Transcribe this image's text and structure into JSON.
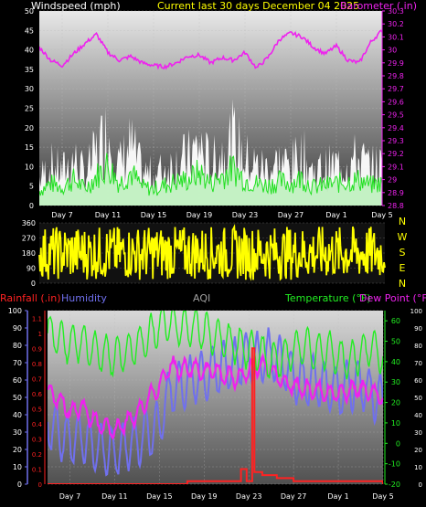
{
  "colors": {
    "windspeed": "#ffffff",
    "wind_gust_green": "#22e022",
    "barometer": "#ee22ee",
    "header_current": "#ffff00",
    "wind_direction": "#ffff00",
    "rainfall": "#ff2222",
    "humidity": "#7070ee",
    "aqi": "#a0a0a0",
    "temperature": "#22ee22",
    "dew_point": "#ee22ee"
  },
  "chart_data": [
    {
      "type": "area",
      "id": "wind_baro",
      "labels": {
        "left": "Windspeed (mph)",
        "center": "Current last 30 days December 04 2025",
        "right": "Barometer (.in)"
      },
      "y_left_ticks": [
        "0",
        "5",
        "10",
        "15",
        "20",
        "25",
        "30",
        "35",
        "40",
        "45",
        "50"
      ],
      "y_left_range": [
        0,
        50
      ],
      "y_right_ticks": [
        "28.8",
        "28.9",
        "29",
        "29.1",
        "29.2",
        "29.3",
        "29.4",
        "29.5",
        "29.6",
        "29.7",
        "29.8",
        "29.9",
        "30",
        "30.1",
        "30.2",
        "30.3"
      ],
      "y_right_range": [
        28.8,
        30.3
      ],
      "x_ticks": [
        "Day 7",
        "Day 11",
        "Day 15",
        "Day 19",
        "Day 23",
        "Day 27",
        "Day 1",
        "Day 5"
      ],
      "x_range": [
        5,
        35
      ],
      "series": [
        {
          "name": "Windspeed (mph)",
          "axis": "left",
          "x": [
            5,
            6,
            7,
            8,
            9,
            10,
            11,
            12,
            13,
            14,
            15,
            16,
            17,
            18,
            19,
            20,
            21,
            22,
            23,
            24,
            25,
            26,
            27,
            28,
            29,
            30,
            31,
            32,
            33,
            34,
            35
          ],
          "values": [
            8,
            12,
            10,
            14,
            9,
            16,
            22,
            12,
            18,
            10,
            9,
            11,
            13,
            14,
            18,
            12,
            16,
            20,
            14,
            12,
            11,
            13,
            12,
            15,
            10,
            11,
            12,
            13,
            14,
            11,
            12
          ]
        },
        {
          "name": "Barometer (.in)",
          "axis": "right",
          "x": [
            5,
            6,
            7,
            8,
            9,
            10,
            11,
            12,
            13,
            14,
            15,
            16,
            17,
            18,
            19,
            20,
            21,
            22,
            23,
            24,
            25,
            26,
            27,
            28,
            29,
            30,
            31,
            32,
            33,
            34,
            35
          ],
          "values": [
            30.02,
            29.92,
            29.88,
            29.97,
            30.05,
            30.12,
            29.98,
            29.92,
            29.95,
            29.9,
            29.88,
            29.87,
            29.9,
            29.95,
            29.96,
            29.9,
            29.94,
            29.92,
            29.98,
            29.86,
            29.94,
            30.08,
            30.13,
            30.1,
            30.02,
            29.97,
            30.03,
            29.92,
            29.9,
            30.06,
            30.15
          ]
        }
      ]
    },
    {
      "type": "line",
      "id": "wind_dir",
      "y_ticks": [
        "0",
        "90",
        "180",
        "270",
        "360"
      ],
      "y_range": [
        0,
        360
      ],
      "direction_letters": [
        "N",
        "W",
        "S",
        "E",
        "N"
      ],
      "series": [
        {
          "name": "Wind direction",
          "value_range": [
            20,
            340
          ]
        }
      ]
    },
    {
      "type": "line",
      "id": "rain_hum_temp",
      "labels": {
        "rainfall": "Rainfall (.in)",
        "humidity": "Humidity",
        "aqi": "AQI",
        "temperature": "Temperature (°F)",
        "dew_point": "Dew Point (°F)"
      },
      "y_far_left_ticks": [
        "0",
        "10",
        "20",
        "30",
        "40",
        "50",
        "60",
        "70",
        "80",
        "90",
        "100"
      ],
      "y_far_left_range": [
        0,
        100
      ],
      "y_left_ticks": [
        "0",
        "0.1",
        "0.2",
        "0.3",
        "0.4",
        "0.5",
        "0.6",
        "0.7",
        "0.8",
        "0.9",
        "1",
        "1.1"
      ],
      "y_left_range": [
        0,
        1.15
      ],
      "y_right_ticks": [
        "-20",
        "-10",
        "0",
        "10",
        "20",
        "30",
        "40",
        "50",
        "60"
      ],
      "y_right_range": [
        -20,
        65
      ],
      "y_far_right_ticks": [
        "0",
        "10",
        "20",
        "30",
        "40",
        "50",
        "60",
        "70",
        "80",
        "90",
        "100"
      ],
      "y_far_right_range": [
        0,
        100
      ],
      "x_ticks": [
        "Day 7",
        "Day 11",
        "Day 15",
        "Day 19",
        "Day 23",
        "Day 27",
        "Day 1",
        "Day 5"
      ],
      "x_range": [
        5,
        35
      ],
      "series": [
        {
          "name": "Temperature (°F)",
          "axis": "right",
          "x": [
            5,
            6,
            7,
            8,
            9,
            10,
            11,
            12,
            13,
            14,
            15,
            16,
            17,
            18,
            19,
            20,
            21,
            22,
            23,
            24,
            25,
            26,
            27,
            28,
            29,
            30,
            31,
            32,
            33,
            34,
            35
          ],
          "values": [
            55,
            52,
            48,
            50,
            46,
            44,
            42,
            45,
            48,
            52,
            58,
            60,
            56,
            58,
            55,
            52,
            50,
            48,
            46,
            44,
            40,
            42,
            45,
            48,
            44,
            46,
            42,
            40,
            44,
            48,
            42
          ]
        },
        {
          "name": "Dew Point (°F)",
          "axis": "right",
          "x": [
            5,
            6,
            7,
            8,
            9,
            10,
            11,
            12,
            13,
            14,
            15,
            16,
            17,
            18,
            19,
            20,
            21,
            22,
            23,
            24,
            25,
            26,
            27,
            28,
            29,
            30,
            31,
            32,
            33,
            34,
            35
          ],
          "values": [
            25,
            22,
            15,
            18,
            12,
            8,
            6,
            10,
            14,
            22,
            28,
            38,
            36,
            37,
            35,
            36,
            33,
            32,
            36,
            38,
            36,
            30,
            28,
            27,
            26,
            25,
            24,
            26,
            27,
            25,
            22
          ]
        },
        {
          "name": "Humidity",
          "axis": "far_left",
          "x": [
            5,
            6,
            7,
            8,
            9,
            10,
            11,
            12,
            13,
            14,
            15,
            16,
            17,
            18,
            19,
            20,
            21,
            22,
            23,
            24,
            25,
            26,
            27,
            28,
            29,
            30,
            31,
            32,
            33,
            34,
            35
          ],
          "values": [
            35,
            30,
            25,
            28,
            22,
            20,
            18,
            22,
            25,
            30,
            34,
            55,
            58,
            60,
            62,
            66,
            68,
            70,
            74,
            72,
            75,
            70,
            62,
            58,
            60,
            56,
            54,
            57,
            58,
            52,
            48
          ]
        },
        {
          "name": "Rainfall (.in)",
          "axis": "left",
          "x": [
            5,
            17.5,
            17.7,
            22.3,
            22.5,
            22.8,
            23.1,
            23.3,
            23.5,
            24.2,
            25.5,
            27,
            35
          ],
          "values": [
            0,
            0.02,
            0.02,
            0.1,
            0.1,
            0.02,
            0.02,
            0.9,
            0.08,
            0.06,
            0.04,
            0.02,
            0.0
          ]
        }
      ]
    }
  ]
}
